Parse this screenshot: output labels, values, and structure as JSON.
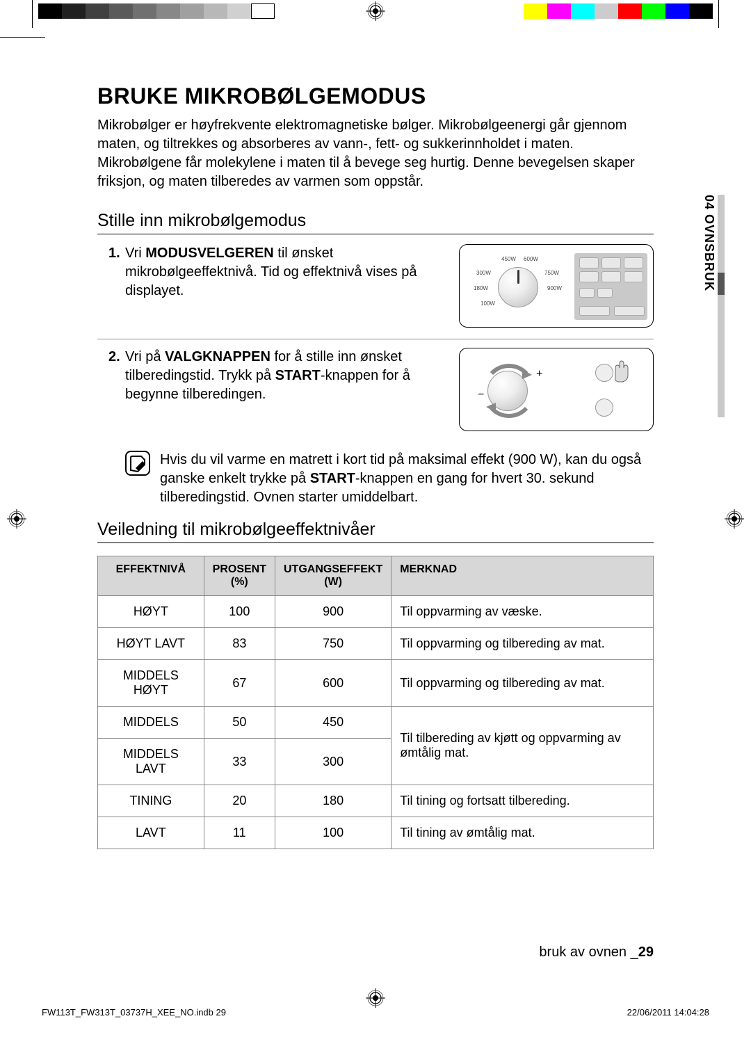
{
  "cal_strip": {
    "grays": [
      "#000000",
      "#202020",
      "#404040",
      "#5a5a5a",
      "#707070",
      "#888888",
      "#a0a0a0",
      "#b8b8b8",
      "#d0d0d0",
      "#ffffff"
    ],
    "colors": [
      "#ffff00",
      "#ff00ff",
      "#00ffff",
      "#cccccc",
      "#ff0000",
      "#00ff00",
      "#0000ff",
      "#000000"
    ]
  },
  "side_tab": "04 OVNSBRUK",
  "heading": "BRUKE MIKROBØLGEMODUS",
  "intro": "Mikrobølger er høyfrekvente elektromagnetiske bølger. Mikrobølgeenergi går gjennom maten, og tiltrekkes og absorberes av vann-, fett- og sukkerinnholdet i maten. Mikrobølgene får molekylene i maten til å bevege seg hurtig. Denne bevegelsen skaper friksjon, og maten tilberedes av varmen som oppstår.",
  "sub1": "Stille inn mikrobølgemodus",
  "step1": {
    "num": "1.",
    "pre": "Vri ",
    "bold1": "MODUSVELGEREN",
    "post": " til ønsket mikrobølgeeffektnivå. Tid og effektnivå vises på displayet."
  },
  "step1_illus": {
    "labels": [
      "450W",
      "600W",
      "300W",
      "750W",
      "180W",
      "900W",
      "100W"
    ]
  },
  "step2": {
    "num": "2.",
    "pre": "Vri på ",
    "bold1": "VALGKNAPPEN",
    "mid": " for å stille inn ønsket tilberedingstid. Trykk på ",
    "bold2": "START",
    "post": "-knappen for å begynne tilberedingen."
  },
  "note": {
    "pre": "Hvis du vil varme en matrett i kort tid på maksimal effekt (900 W), kan du også ganske enkelt trykke på ",
    "bold": "START",
    "post": "-knappen en gang for hvert 30. sekund tilberedingstid. Ovnen starter umiddelbart."
  },
  "sub2": "Veiledning til mikrobølgeeffektnivåer",
  "table": {
    "headers": {
      "c1": "EFFEKTNIVÅ",
      "c2a": "PROSENT",
      "c2b": "(%)",
      "c3a": "UTGANGSEFFEKT",
      "c3b": "(W)",
      "c4": "MERKNAD"
    },
    "rows": [
      {
        "level": "HØYT",
        "pct": "100",
        "watt": "900",
        "note": "Til oppvarming av væske."
      },
      {
        "level": "HØYT LAVT",
        "pct": "83",
        "watt": "750",
        "note": "Til oppvarming og tilbereding av mat."
      },
      {
        "level": "MIDDELS HØYT",
        "pct": "67",
        "watt": "600",
        "note": "Til oppvarming og tilbereding av mat."
      },
      {
        "level": "MIDDELS",
        "pct": "50",
        "watt": "450",
        "note": "Til tilbereding av kjøtt og oppvarming av ømtålig mat.",
        "rowspan": 2
      },
      {
        "level": "MIDDELS LAVT",
        "pct": "33",
        "watt": "300"
      },
      {
        "level": "TINING",
        "pct": "20",
        "watt": "180",
        "note": "Til tining og fortsatt tilbereding."
      },
      {
        "level": "LAVT",
        "pct": "11",
        "watt": "100",
        "note": "Til tining av ømtålig mat."
      }
    ]
  },
  "footer": {
    "label": "bruk av ovnen _",
    "page": "29"
  },
  "print_footer": {
    "file": "FW113T_FW313T_03737H_XEE_NO.indb   29",
    "date": "22/06/2011   14:04:28"
  }
}
